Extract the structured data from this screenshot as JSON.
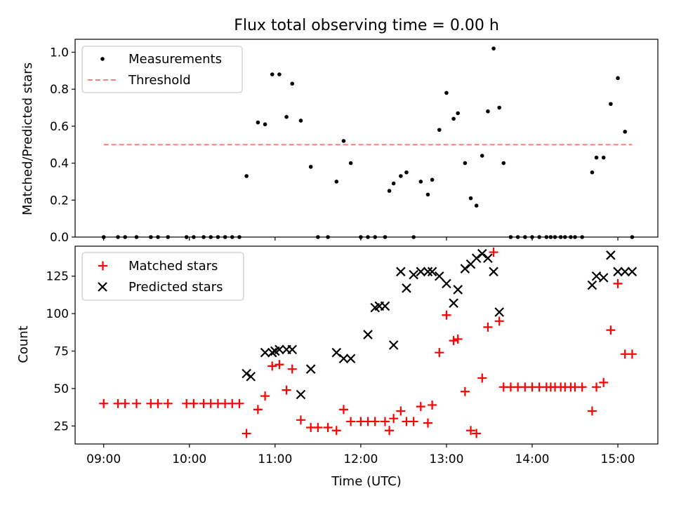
{
  "figure": {
    "title": "Flux total observing time = 0.00 h",
    "xlabel": "Time (UTC)"
  },
  "x_ticks": [
    "09:00",
    "10:00",
    "11:00",
    "12:00",
    "13:00",
    "14:00",
    "15:00"
  ],
  "colors": {
    "measurement": "#000000",
    "threshold": "#ff7f7f",
    "matched": "#ff0000",
    "predicted": "#000000",
    "axes": "#000000",
    "background": "#ffffff"
  },
  "chart_data": [
    {
      "type": "scatter",
      "ylabel": "Matched/Predicted stars",
      "xlim": [
        "08:40",
        "15:28"
      ],
      "ylim": [
        0,
        1.07
      ],
      "yticks": [
        "0.0",
        "0.2",
        "0.4",
        "0.6",
        "0.8",
        "1.0"
      ],
      "grid": false,
      "legend_position": "upper-left",
      "legend": [
        "Measurements",
        "Threshold"
      ],
      "series": [
        {
          "name": "Measurements",
          "marker": "dot",
          "x": [
            "09:00",
            "09:10",
            "09:15",
            "09:23",
            "09:33",
            "09:38",
            "09:45",
            "09:58",
            "10:03",
            "10:10",
            "10:15",
            "10:20",
            "10:25",
            "10:30",
            "10:35",
            "10:40",
            "10:48",
            "10:53",
            "10:58",
            "11:03",
            "11:08",
            "11:12",
            "11:18",
            "11:25",
            "11:30",
            "11:37",
            "11:43",
            "11:48",
            "11:53",
            "12:00",
            "12:05",
            "12:10",
            "12:17",
            "12:20",
            "12:23",
            "12:28",
            "12:32",
            "12:37",
            "12:42",
            "12:47",
            "12:50",
            "12:55",
            "13:00",
            "13:05",
            "13:08",
            "13:13",
            "13:17",
            "13:21",
            "13:25",
            "13:29",
            "13:33",
            "13:37",
            "13:40",
            "13:45",
            "13:50",
            "13:55",
            "14:00",
            "14:05",
            "14:10",
            "14:13",
            "14:16",
            "14:20",
            "14:23",
            "14:27",
            "14:30",
            "14:35",
            "14:42",
            "14:45",
            "14:50",
            "14:55",
            "15:00",
            "15:05",
            "15:10"
          ],
          "y": [
            0.0,
            0.0,
            0.0,
            0.0,
            0.0,
            0.0,
            0.0,
            0.0,
            0.0,
            0.0,
            0.0,
            0.0,
            0.0,
            0.0,
            0.0,
            0.33,
            0.62,
            0.61,
            0.88,
            0.88,
            0.65,
            0.83,
            0.63,
            0.38,
            0.0,
            0.0,
            0.3,
            0.52,
            0.4,
            0.0,
            0.0,
            0.0,
            0.0,
            0.25,
            0.29,
            0.33,
            0.35,
            0.0,
            0.3,
            0.23,
            0.31,
            0.58,
            0.78,
            0.64,
            0.67,
            0.4,
            0.21,
            0.17,
            0.44,
            0.68,
            1.02,
            0.7,
            0.4,
            0.0,
            0.0,
            0.0,
            0.0,
            0.0,
            0.0,
            0.0,
            0.0,
            0.0,
            0.0,
            0.0,
            0.0,
            0.0,
            0.35,
            0.43,
            0.43,
            0.72,
            0.86,
            0.57,
            0.0
          ]
        },
        {
          "name": "Threshold",
          "style": "dashed",
          "x": [
            "09:00",
            "15:10"
          ],
          "y": [
            0.5,
            0.5
          ]
        }
      ]
    },
    {
      "type": "scatter",
      "ylabel": "Count",
      "xlim": [
        "08:40",
        "15:28"
      ],
      "ylim": [
        13,
        145
      ],
      "yticks": [
        "25",
        "50",
        "75",
        "100",
        "125"
      ],
      "grid": false,
      "legend_position": "upper-left",
      "legend": [
        "Matched stars",
        "Predicted stars"
      ],
      "series": [
        {
          "name": "Matched stars",
          "marker": "plus",
          "x": [
            "09:00",
            "09:10",
            "09:15",
            "09:23",
            "09:33",
            "09:38",
            "09:45",
            "09:58",
            "10:03",
            "10:10",
            "10:15",
            "10:20",
            "10:25",
            "10:30",
            "10:35",
            "10:40",
            "10:48",
            "10:53",
            "10:58",
            "11:03",
            "11:08",
            "11:12",
            "11:18",
            "11:25",
            "11:30",
            "11:37",
            "11:43",
            "11:48",
            "11:53",
            "12:00",
            "12:05",
            "12:10",
            "12:17",
            "12:20",
            "12:23",
            "12:28",
            "12:32",
            "12:37",
            "12:42",
            "12:47",
            "12:50",
            "12:55",
            "13:00",
            "13:05",
            "13:08",
            "13:13",
            "13:17",
            "13:21",
            "13:25",
            "13:29",
            "13:33",
            "13:37",
            "13:40",
            "13:45",
            "13:50",
            "13:55",
            "14:00",
            "14:05",
            "14:10",
            "14:13",
            "14:16",
            "14:20",
            "14:23",
            "14:27",
            "14:30",
            "14:35",
            "14:42",
            "14:45",
            "14:50",
            "14:55",
            "15:00",
            "15:05",
            "15:10"
          ],
          "y": [
            40,
            40,
            40,
            40,
            40,
            40,
            40,
            40,
            40,
            40,
            40,
            40,
            40,
            40,
            40,
            20,
            36,
            45,
            65,
            66,
            49,
            63,
            29,
            24,
            24,
            24,
            22,
            36,
            28,
            28,
            28,
            28,
            28,
            22,
            30,
            35,
            28,
            28,
            38,
            27,
            39,
            74,
            99,
            82,
            83,
            48,
            22,
            20,
            57,
            91,
            141,
            95,
            51,
            51,
            51,
            51,
            51,
            51,
            51,
            51,
            51,
            51,
            51,
            51,
            51,
            51,
            35,
            51,
            54,
            89,
            120,
            73,
            73
          ]
        },
        {
          "name": "Predicted stars",
          "marker": "x",
          "x": [
            "10:40",
            "10:43",
            "10:53",
            "10:58",
            "11:00",
            "11:03",
            "11:08",
            "11:12",
            "11:18",
            "11:25",
            "11:43",
            "11:48",
            "11:53",
            "12:05",
            "12:10",
            "12:13",
            "12:17",
            "12:23",
            "12:28",
            "12:32",
            "12:37",
            "12:42",
            "12:47",
            "12:50",
            "12:55",
            "13:00",
            "13:05",
            "13:08",
            "13:13",
            "13:17",
            "13:21",
            "13:25",
            "13:29",
            "13:33",
            "13:37",
            "14:42",
            "14:45",
            "14:50",
            "14:55",
            "15:00",
            "15:05",
            "15:10"
          ],
          "y": [
            60,
            58,
            74,
            74,
            75,
            76,
            76,
            76,
            46,
            63,
            74,
            70,
            70,
            86,
            104,
            105,
            105,
            79,
            128,
            117,
            126,
            128,
            128,
            128,
            125,
            120,
            107,
            116,
            130,
            133,
            137,
            140,
            137,
            128,
            101,
            119,
            125,
            124,
            139,
            128,
            128,
            128
          ]
        }
      ]
    }
  ]
}
